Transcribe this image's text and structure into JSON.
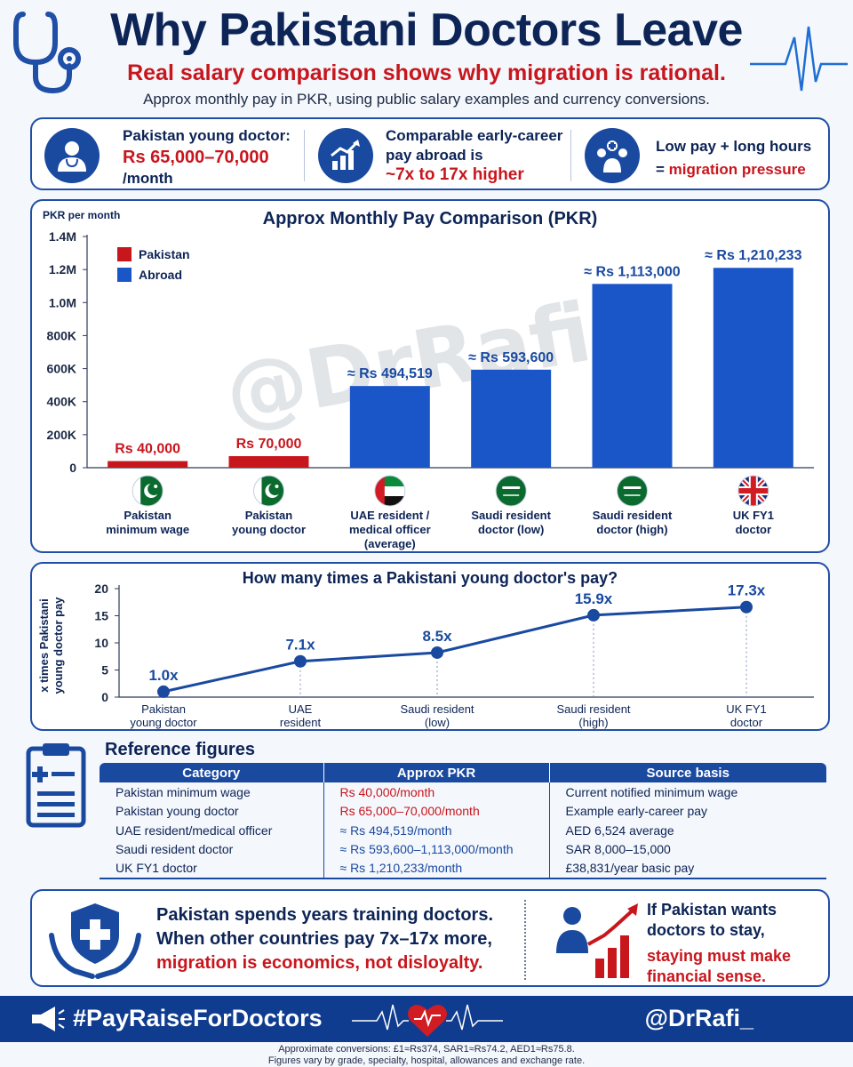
{
  "header": {
    "title": "Why Pakistani Doctors Leave",
    "subtitle": "Real salary comparison shows why migration is rational.",
    "note": "Approx monthly pay in PKR, using public salary examples and currency conversions."
  },
  "summary": [
    {
      "icon": "doctor-icon",
      "line1": "Pakistan young doctor:",
      "line2": "Rs 65,000–70,000",
      "line3": "/month"
    },
    {
      "icon": "growth-chart-icon",
      "line1": "Comparable early-career",
      "line2": "pay abroad is",
      "line3": "~7x to 17x higher"
    },
    {
      "icon": "medical-team-icon",
      "line1": "Low pay + long hours",
      "line2": "= ",
      "line3": "migration pressure"
    }
  ],
  "chart_data": [
    {
      "type": "bar",
      "title": "Approx Monthly Pay Comparison (PKR)",
      "ylabel": "PKR per month",
      "ylim": [
        0,
        1400000
      ],
      "yticks": [
        0,
        200000,
        400000,
        600000,
        800000,
        1000000,
        1200000,
        1400000
      ],
      "ytick_labels": [
        "0",
        "200K",
        "400K",
        "600K",
        "800K",
        "1.0M",
        "1.2M",
        "1.4M"
      ],
      "legend": {
        "position": "top-left",
        "entries": [
          {
            "name": "Pakistan",
            "color": "#c8161d"
          },
          {
            "name": "Abroad",
            "color": "#1a56c8"
          }
        ]
      },
      "categories": [
        {
          "line1": "Pakistan",
          "line2": "minimum wage",
          "line3": "",
          "flag": "pakistan-flag"
        },
        {
          "line1": "Pakistan",
          "line2": "young doctor",
          "line3": "",
          "flag": "pakistan-flag"
        },
        {
          "line1": "UAE resident /",
          "line2": "medical officer",
          "line3": "(average)",
          "flag": "uae-flag"
        },
        {
          "line1": "Saudi resident",
          "line2": "doctor (low)",
          "line3": "",
          "flag": "saudi-flag"
        },
        {
          "line1": "Saudi resident",
          "line2": "doctor (high)",
          "line3": "",
          "flag": "saudi-flag"
        },
        {
          "line1": "UK FY1",
          "line2": "doctor",
          "line3": "",
          "flag": "uk-flag"
        }
      ],
      "values": [
        40000,
        70000,
        494519,
        593600,
        1113000,
        1210233
      ],
      "groups": [
        "Pakistan",
        "Pakistan",
        "Abroad",
        "Abroad",
        "Abroad",
        "Abroad"
      ],
      "data_labels": [
        "Rs 40,000",
        "Rs 70,000",
        "≈ Rs 494,519",
        "≈ Rs  593,600",
        "≈ Rs 1,113,000",
        "≈ Rs 1,210,233"
      ],
      "watermark": "@DrRafi_",
      "grid": false
    },
    {
      "type": "line",
      "title": "How many times a Pakistani young doctor's pay?",
      "ylabel_lines": [
        "x times Pakistani",
        "young doctor pay"
      ],
      "ylim": [
        0,
        20
      ],
      "yticks": [
        0,
        5,
        10,
        15,
        20
      ],
      "categories": [
        {
          "line1": "Pakistan",
          "line2": "young doctor"
        },
        {
          "line1": "UAE",
          "line2": "resident"
        },
        {
          "line1": "Saudi resident",
          "line2": "(low)"
        },
        {
          "line1": "Saudi resident",
          "line2": "(high)"
        },
        {
          "line1": "UK FY1",
          "line2": "doctor"
        }
      ],
      "values": [
        1.0,
        7.1,
        8.5,
        15.9,
        17.3
      ],
      "y_positions": [
        1.0,
        6.6,
        8.2,
        15.1,
        16.6
      ],
      "data_labels": [
        "1.0x",
        "7.1x",
        "8.5x",
        "15.9x",
        "17.3x"
      ],
      "grid": false
    }
  ],
  "reference": {
    "title": "Reference figures",
    "columns": [
      "Category",
      "Approx PKR",
      "Source basis"
    ],
    "rows": [
      {
        "category": "Pakistan minimum wage",
        "pkr": "Rs 40,000/month",
        "source": "Current notified minimum wage",
        "kind": "pk"
      },
      {
        "category": "Pakistan young doctor",
        "pkr": "Rs 65,000–70,000/month",
        "source": "Example early-career pay",
        "kind": "pk"
      },
      {
        "category": "UAE resident/medical officer",
        "pkr": "≈ Rs 494,519/month",
        "source": "AED 6,524 average",
        "kind": "ab"
      },
      {
        "category": "Saudi resident doctor",
        "pkr": "≈ Rs 593,600–1,113,000/month",
        "source": "SAR 8,000–15,000",
        "kind": "ab"
      },
      {
        "category": "UK FY1 doctor",
        "pkr": "≈ Rs 1,210,233/month",
        "source": "£38,831/year basic pay",
        "kind": "ab"
      }
    ]
  },
  "message": {
    "left_line1": "Pakistan spends years training doctors.",
    "left_line2": "When other countries pay 7x–17x more,",
    "left_line3": "migration is economics, not disloyalty.",
    "right_line1": "If Pakistan wants",
    "right_line2": "doctors to stay,",
    "right_line3": "staying must make",
    "right_line4": "financial sense."
  },
  "footer": {
    "hashtag": "#PayRaiseForDoctors",
    "handle": "@DrRafi_",
    "note1": "Approximate conversions: £1≈Rs374, SAR1≈Rs74.2, AED1≈Rs75.8.",
    "note2": "Figures vary by grade, specialty, hospital, allowances and exchange rate."
  },
  "colors": {
    "navy": "#0d2456",
    "red": "#c8161d",
    "blue": "#1a56c8",
    "bar_blue": "#1a56c8",
    "line_blue": "#1a4aa0"
  }
}
